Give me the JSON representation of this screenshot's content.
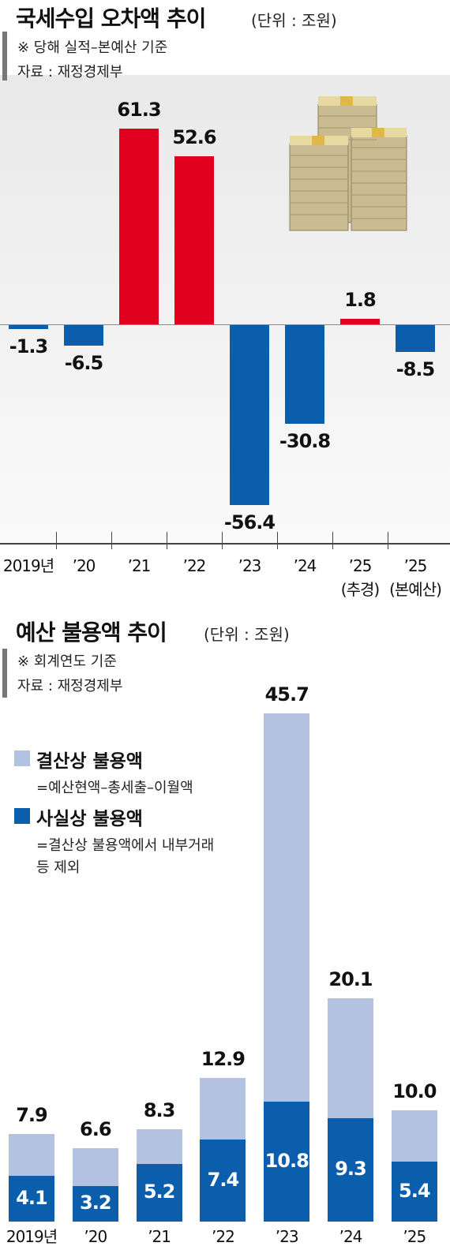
{
  "chart_data": [
    {
      "type": "bar",
      "title": "국세수입 오차액 추이",
      "unit": "(단위 : 조원)",
      "notes": [
        "※ 당해 실적–본예산 기준",
        "자료 : 재정경제부"
      ],
      "categories": [
        "2019년",
        "’20",
        "’21",
        "’22",
        "’23",
        "’24",
        "’25\n(추경)",
        "’25\n(본예산)"
      ],
      "values": [
        -1.3,
        -6.5,
        61.3,
        52.6,
        -56.4,
        -30.8,
        1.8,
        -8.5
      ],
      "positive_color": "#e1001e",
      "negative_color": "#0a5eac"
    },
    {
      "type": "bar",
      "barmode": "overlay",
      "title": "예산 불용액 추이",
      "unit": "(단위 : 조원)",
      "notes": [
        "※ 회계연도 기준",
        "자료 : 재정경제부"
      ],
      "categories": [
        "2019년",
        "’20",
        "’21",
        "’22",
        "’23",
        "’24",
        "’25"
      ],
      "series": [
        {
          "name": "결산상 불용액",
          "description": "=예산현액–총세출–이월액",
          "color": "#b3c2e0",
          "values": [
            7.9,
            6.6,
            8.3,
            12.9,
            45.7,
            20.1,
            10.0
          ],
          "value_labels": [
            "7.9",
            "6.6",
            "8.3",
            "12.9",
            "45.7",
            "20.1",
            "10.0"
          ]
        },
        {
          "name": "사실상 불용액",
          "description": "=결산상 불용액에서 내부거래\n등 제외",
          "color": "#0a5eac",
          "values": [
            4.1,
            3.2,
            5.2,
            7.4,
            10.8,
            9.3,
            5.4
          ]
        }
      ]
    }
  ]
}
